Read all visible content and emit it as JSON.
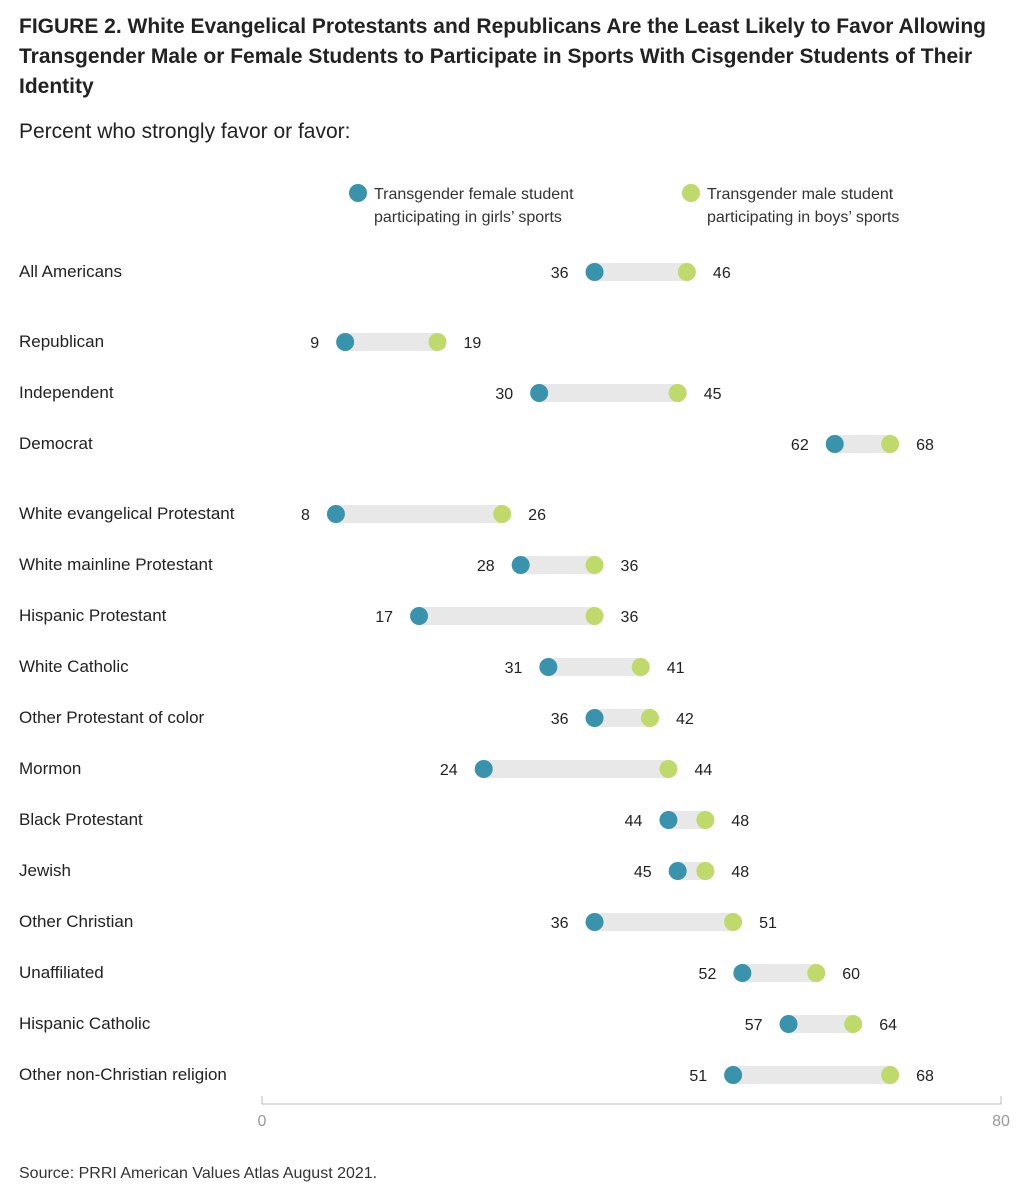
{
  "figure": {
    "title": "FIGURE 2.  White Evangelical Protestants and Republicans Are the Least Likely to Favor Allowing Transgender Male or Female Students to Participate in Sports With Cisgender Students of Their Identity",
    "subtitle": "Percent who strongly favor or favor:",
    "source": "Source: PRRI American Values Atlas August 2021."
  },
  "colors": {
    "female": "#3a93ad",
    "male": "#bfd96b",
    "connector": "#e8e8e8",
    "axis": "#bbbbbb"
  },
  "chart_data": {
    "type": "dot-plot",
    "series": [
      {
        "name": "Transgender female student participating in girls’ sports",
        "legend_lines": [
          "Transgender female student",
          "participating in girls’ sports"
        ]
      },
      {
        "name": "Transgender male student participating in boys’ sports",
        "legend_lines": [
          "Transgender male student",
          "participating in boys’ sports"
        ]
      }
    ],
    "xlim": [
      0,
      80
    ],
    "x_ticks": [
      "0",
      "80"
    ],
    "legend_position": "top",
    "rows": [
      {
        "label": "All Americans",
        "female": 36,
        "male": 46,
        "group": 0
      },
      {
        "label": "Republican",
        "female": 9,
        "male": 19,
        "group": 1
      },
      {
        "label": "Independent",
        "female": 30,
        "male": 45,
        "group": 1
      },
      {
        "label": "Democrat",
        "female": 62,
        "male": 68,
        "group": 1
      },
      {
        "label": "White evangelical Protestant",
        "female": 8,
        "male": 26,
        "group": 2
      },
      {
        "label": "White mainline Protestant",
        "female": 28,
        "male": 36,
        "group": 2
      },
      {
        "label": "Hispanic Protestant",
        "female": 17,
        "male": 36,
        "group": 2
      },
      {
        "label": "White Catholic",
        "female": 31,
        "male": 41,
        "group": 2
      },
      {
        "label": "Other Protestant of color",
        "female": 36,
        "male": 42,
        "group": 2
      },
      {
        "label": "Mormon",
        "female": 24,
        "male": 44,
        "group": 2
      },
      {
        "label": "Black Protestant",
        "female": 44,
        "male": 48,
        "group": 2
      },
      {
        "label": "Jewish",
        "female": 45,
        "male": 48,
        "group": 2
      },
      {
        "label": "Other Christian",
        "female": 36,
        "male": 51,
        "group": 2
      },
      {
        "label": "Unaffiliated",
        "female": 52,
        "male": 60,
        "group": 2
      },
      {
        "label": "Hispanic Catholic",
        "female": 57,
        "male": 64,
        "group": 2
      },
      {
        "label": "Other non-Christian religion",
        "female": 51,
        "male": 68,
        "group": 2
      }
    ]
  }
}
